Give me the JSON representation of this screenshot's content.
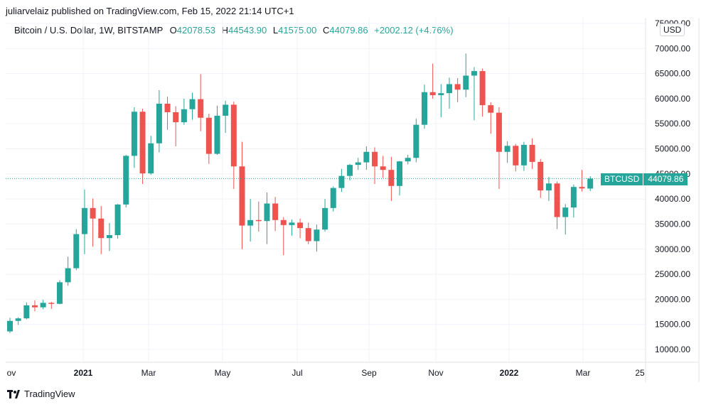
{
  "header": {
    "published": "juliarvelaiz published on TradingView.com, Feb 15, 2022 21:14 UTC+1"
  },
  "legend": {
    "title": "Bitcoin / U.S. Dollar, 1W, BITSTAMP",
    "open_label": "O",
    "open": "42078.53",
    "high_label": "H",
    "high": "44543.90",
    "low_label": "L",
    "low": "41575.00",
    "close_label": "C",
    "close": "44079.86",
    "change": "+2002.12 (+4.76%)"
  },
  "price_tag": {
    "symbol": "BTCUSD",
    "price": "44079.86"
  },
  "currency_badge": "USD",
  "brand": "TradingView",
  "colors": {
    "up": "#26a69a",
    "down": "#ef5350",
    "grid": "#f0f3fa",
    "axis_text": "#131722"
  },
  "chart_data": {
    "type": "candlestick",
    "title": "Bitcoin / U.S. Dollar, 1W, BITSTAMP",
    "ylim": [
      7000,
      75000
    ],
    "y_ticks": [
      "10000.00",
      "15000.00",
      "20000.00",
      "25000.00",
      "30000.00",
      "35000.00",
      "40000.00",
      "45000.00",
      "50000.00",
      "55000.00",
      "60000.00",
      "65000.00",
      "70000.00",
      "75000.00"
    ],
    "y_tick_values": [
      10000,
      15000,
      20000,
      25000,
      30000,
      35000,
      40000,
      45000,
      50000,
      55000,
      60000,
      65000,
      70000,
      75000
    ],
    "x_ticks": [
      "ov",
      "2021",
      "Mar",
      "May",
      "Jul",
      "Sep",
      "Nov",
      "2022",
      "Mar",
      "25"
    ],
    "x_tick_bold": [
      false,
      true,
      false,
      false,
      false,
      false,
      false,
      true,
      false,
      false
    ],
    "current_price": 44079.86,
    "candles": [
      {
        "o": 13600,
        "h": 16300,
        "l": 13300,
        "c": 15700
      },
      {
        "o": 15700,
        "h": 16400,
        "l": 14900,
        "c": 16200
      },
      {
        "o": 16200,
        "h": 19400,
        "l": 16000,
        "c": 18800
      },
      {
        "o": 18800,
        "h": 19800,
        "l": 17600,
        "c": 18400
      },
      {
        "o": 18400,
        "h": 19900,
        "l": 18000,
        "c": 19300
      },
      {
        "o": 19300,
        "h": 19500,
        "l": 18100,
        "c": 19100
      },
      {
        "o": 19100,
        "h": 23800,
        "l": 19000,
        "c": 23400
      },
      {
        "o": 23400,
        "h": 28500,
        "l": 22700,
        "c": 26200
      },
      {
        "o": 26200,
        "h": 34000,
        "l": 25800,
        "c": 33000
      },
      {
        "o": 33000,
        "h": 41900,
        "l": 29000,
        "c": 38200
      },
      {
        "o": 38200,
        "h": 40100,
        "l": 30500,
        "c": 36100
      },
      {
        "o": 36100,
        "h": 38600,
        "l": 29000,
        "c": 32200
      },
      {
        "o": 32200,
        "h": 35200,
        "l": 29600,
        "c": 32800
      },
      {
        "o": 32800,
        "h": 39000,
        "l": 32100,
        "c": 38900
      },
      {
        "o": 38900,
        "h": 48800,
        "l": 38300,
        "c": 48600
      },
      {
        "o": 48600,
        "h": 58300,
        "l": 46200,
        "c": 57400
      },
      {
        "o": 57400,
        "h": 58000,
        "l": 43000,
        "c": 45100
      },
      {
        "o": 45100,
        "h": 52600,
        "l": 44800,
        "c": 51100
      },
      {
        "o": 51100,
        "h": 61700,
        "l": 49300,
        "c": 59000
      },
      {
        "o": 59000,
        "h": 60400,
        "l": 53800,
        "c": 57300
      },
      {
        "o": 57300,
        "h": 58500,
        "l": 50500,
        "c": 55300
      },
      {
        "o": 55300,
        "h": 60000,
        "l": 54800,
        "c": 57900
      },
      {
        "o": 57900,
        "h": 61200,
        "l": 55800,
        "c": 59900
      },
      {
        "o": 59900,
        "h": 64900,
        "l": 53500,
        "c": 56200
      },
      {
        "o": 56200,
        "h": 57000,
        "l": 47000,
        "c": 49000
      },
      {
        "o": 49000,
        "h": 58600,
        "l": 48800,
        "c": 56600
      },
      {
        "o": 56600,
        "h": 59600,
        "l": 53200,
        "c": 58800
      },
      {
        "o": 58800,
        "h": 59400,
        "l": 42000,
        "c": 46500
      },
      {
        "o": 46500,
        "h": 51400,
        "l": 30000,
        "c": 34700
      },
      {
        "o": 34700,
        "h": 40000,
        "l": 31500,
        "c": 35800
      },
      {
        "o": 35800,
        "h": 39500,
        "l": 33500,
        "c": 35600
      },
      {
        "o": 35600,
        "h": 41300,
        "l": 31000,
        "c": 39100
      },
      {
        "o": 39100,
        "h": 40400,
        "l": 33600,
        "c": 35800
      },
      {
        "o": 35800,
        "h": 36400,
        "l": 28800,
        "c": 34800
      },
      {
        "o": 34800,
        "h": 35900,
        "l": 32700,
        "c": 35300
      },
      {
        "o": 35300,
        "h": 36100,
        "l": 32200,
        "c": 34200
      },
      {
        "o": 34200,
        "h": 35300,
        "l": 31000,
        "c": 31600
      },
      {
        "o": 31600,
        "h": 34900,
        "l": 29500,
        "c": 33900
      },
      {
        "o": 33900,
        "h": 40000,
        "l": 33500,
        "c": 38200
      },
      {
        "o": 38200,
        "h": 42500,
        "l": 37500,
        "c": 42200
      },
      {
        "o": 42200,
        "h": 46000,
        "l": 41400,
        "c": 44600
      },
      {
        "o": 44600,
        "h": 47000,
        "l": 43700,
        "c": 46800
      },
      {
        "o": 46800,
        "h": 48200,
        "l": 45800,
        "c": 47300
      },
      {
        "o": 47300,
        "h": 50500,
        "l": 45800,
        "c": 49400
      },
      {
        "o": 49400,
        "h": 50300,
        "l": 43000,
        "c": 46500
      },
      {
        "o": 46500,
        "h": 48600,
        "l": 44200,
        "c": 45800
      },
      {
        "o": 45800,
        "h": 48400,
        "l": 39600,
        "c": 42600
      },
      {
        "o": 42600,
        "h": 47600,
        "l": 40700,
        "c": 47500
      },
      {
        "o": 47500,
        "h": 48800,
        "l": 46900,
        "c": 48200
      },
      {
        "o": 48200,
        "h": 56000,
        "l": 47300,
        "c": 54800
      },
      {
        "o": 54800,
        "h": 62800,
        "l": 54000,
        "c": 61300
      },
      {
        "o": 61300,
        "h": 67000,
        "l": 60000,
        "c": 60700
      },
      {
        "o": 60700,
        "h": 62900,
        "l": 56300,
        "c": 61100
      },
      {
        "o": 61100,
        "h": 64200,
        "l": 58000,
        "c": 62900
      },
      {
        "o": 62900,
        "h": 64100,
        "l": 59300,
        "c": 61800
      },
      {
        "o": 61800,
        "h": 69000,
        "l": 60300,
        "c": 64600
      },
      {
        "o": 64600,
        "h": 66300,
        "l": 55700,
        "c": 65500
      },
      {
        "o": 65500,
        "h": 66000,
        "l": 56400,
        "c": 58700
      },
      {
        "o": 58700,
        "h": 59300,
        "l": 53000,
        "c": 57200
      },
      {
        "o": 57200,
        "h": 58300,
        "l": 42000,
        "c": 49400
      },
      {
        "o": 49400,
        "h": 51500,
        "l": 47200,
        "c": 50600
      },
      {
        "o": 50600,
        "h": 51000,
        "l": 45500,
        "c": 46700
      },
      {
        "o": 46700,
        "h": 51400,
        "l": 45600,
        "c": 50800
      },
      {
        "o": 50800,
        "h": 52100,
        "l": 46000,
        "c": 47400
      },
      {
        "o": 47400,
        "h": 48000,
        "l": 40200,
        "c": 41700
      },
      {
        "o": 41700,
        "h": 44400,
        "l": 39600,
        "c": 43100
      },
      {
        "o": 43100,
        "h": 43500,
        "l": 34000,
        "c": 36400
      },
      {
        "o": 36400,
        "h": 39000,
        "l": 32900,
        "c": 38300
      },
      {
        "o": 38300,
        "h": 42900,
        "l": 36300,
        "c": 42400
      },
      {
        "o": 42400,
        "h": 45800,
        "l": 41500,
        "c": 42100
      },
      {
        "o": 42078.53,
        "h": 44543.9,
        "l": 41575.0,
        "c": 44079.86
      }
    ]
  }
}
